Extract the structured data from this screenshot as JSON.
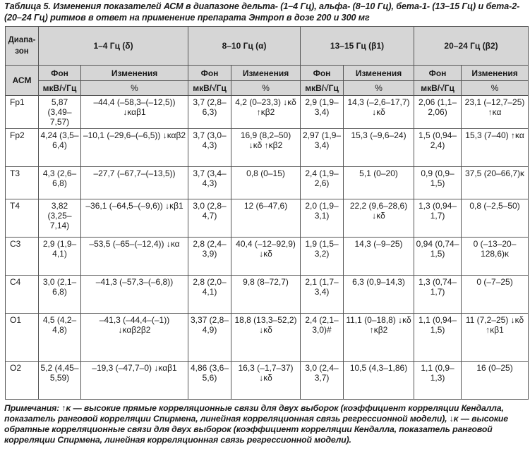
{
  "caption": "Таблица 5. Изменения показателей АСМ в диапазоне дельта- (1–4 Гц), альфа- (8–10 Гц), бета-1- (13–15 Гц) и бета-2- (20–24 Гц) ритмов в ответ на применение препарата Энтроп в дозе 200 и 300 мг",
  "header": {
    "range_label": "Диа­па­зон",
    "asm_label": "АСМ",
    "bands": [
      "1–4 Гц (δ)",
      "8–10 Гц (α)",
      "13–15 Гц (β1)",
      "20–24 Гц (β2)"
    ],
    "fon": "Фон",
    "izm": "Изменения",
    "unit": "мкВ/√Гц",
    "pct": "%"
  },
  "rows": [
    {
      "lead": "Fp1",
      "c": [
        "5,87 (3,49–7,57)",
        "–44,4 (–58,3–(–12,5)) ↓καβ1",
        "3,7 (2,8–6,3)",
        "4,2 (0–23,3) ↓κδ ↑κβ2",
        "2,9 (1,9–3,4)",
        "14,3 (–2,6–17,7) ↓κδ",
        "2,06 (1,1–2,06)",
        "23,1 (–12,7–25) ↑κα"
      ]
    },
    {
      "lead": "Fp2",
      "c": [
        "4,24 (3,5–6,4)",
        "–10,1 (–29,6–(–6,5)) ↓καβ2",
        "3,7 (3,0–4,3)",
        "16,9 (8,2–50) ↓κδ ↑κβ2",
        "2,97 (1,9–3,4)",
        "15,3 (–9,6–24)",
        "1,5 (0,94–2,4)",
        "15,3 (7–40) ↑κα"
      ]
    },
    {
      "lead": "T3",
      "c": [
        "4,3 (2,6–6,8)",
        "–27,7 (–67,7–(–13,5))",
        "3,7 (3,4–4,3)",
        "0,8 (0–15)",
        "2,4 (1,9–2,6)",
        "5,1 (0–20)",
        "0,9 (0,9–1,5)",
        "37,5 (20–66,7)κ"
      ]
    },
    {
      "lead": "T4",
      "c": [
        "3,82 (3,25–7,14)",
        "–36,1 (–64,5–(–9,6)) ↓κβ1",
        "3,0 (2,8–4,7)",
        "12 (6–47,6)",
        "2,0 (1,9–3,1)",
        "22,2 (9,6–28,6) ↓κδ",
        "1,3 (0,94–1,7)",
        "0,8 (–2,5–50)"
      ]
    },
    {
      "lead": "C3",
      "c": [
        "2,9 (1,9–4,1)",
        "–53,5 (–65–(–12,4)) ↓κα",
        "2,8 (2,4–3,9)",
        "40,4 (–12–92,9) ↓κδ",
        "1,9 (1,5–3,2)",
        "14,3 (–9–25)",
        "0,94 (0,74–1,5)",
        "0 (–13–20–128,6)κ"
      ]
    },
    {
      "lead": "C4",
      "c": [
        "3,0 (2,1–6,8)",
        "–41,3 (–57,3–(–6,8))",
        "2,8 (2,0–4,1)",
        "9,8 (8–72,7)",
        "2,1 (1,7–3,4)",
        "6,3 (0,9–14,3)",
        "1,3 (0,74–1,7)",
        "0 (–7–25)"
      ]
    },
    {
      "lead": "O1",
      "c": [
        "4,5 (4,2–4,8)",
        "–41,3 (–44,4–(–1)) ↓καβ2β2",
        "3,37 (2,8–4,9)",
        "18,8 (13,3–52,2) ↓κδ",
        "2,4 (2,1–3,0)#",
        "11,1 (0–18,8) ↓κδ ↑κβ2",
        "1,1 (0,94–1,5)",
        "11 (7,2–25) ↓κδ ↑κβ1"
      ]
    },
    {
      "lead": "O2",
      "c": [
        "5,2 (4,45–5,59)",
        "–19,3 (–47,7–0) ↓καβ1",
        "4,86 (3,6–5,6)",
        "16,3 (–1,7–37) ↓κδ",
        "3,0 (2,4–3,7)",
        "10,5 (4,3–1,86)",
        "1,1 (0,9–1,3)",
        "16 (0–25)"
      ]
    }
  ],
  "notes": "Примечания: ↑κ — высокие прямые корреляционные связи для двух выборок (коэффициент корреляции Кендалла, показатель ранговой корреляции Спирмена, линейная корреляционная связь регрессионной модели), ↓κ — высокие обратные корреляционные связи для двух выборок (коэффициент корреляции Кендалла, показатель ранговой корреляции Спирмена, линейная корреляционная связь регрессионной модели)."
}
